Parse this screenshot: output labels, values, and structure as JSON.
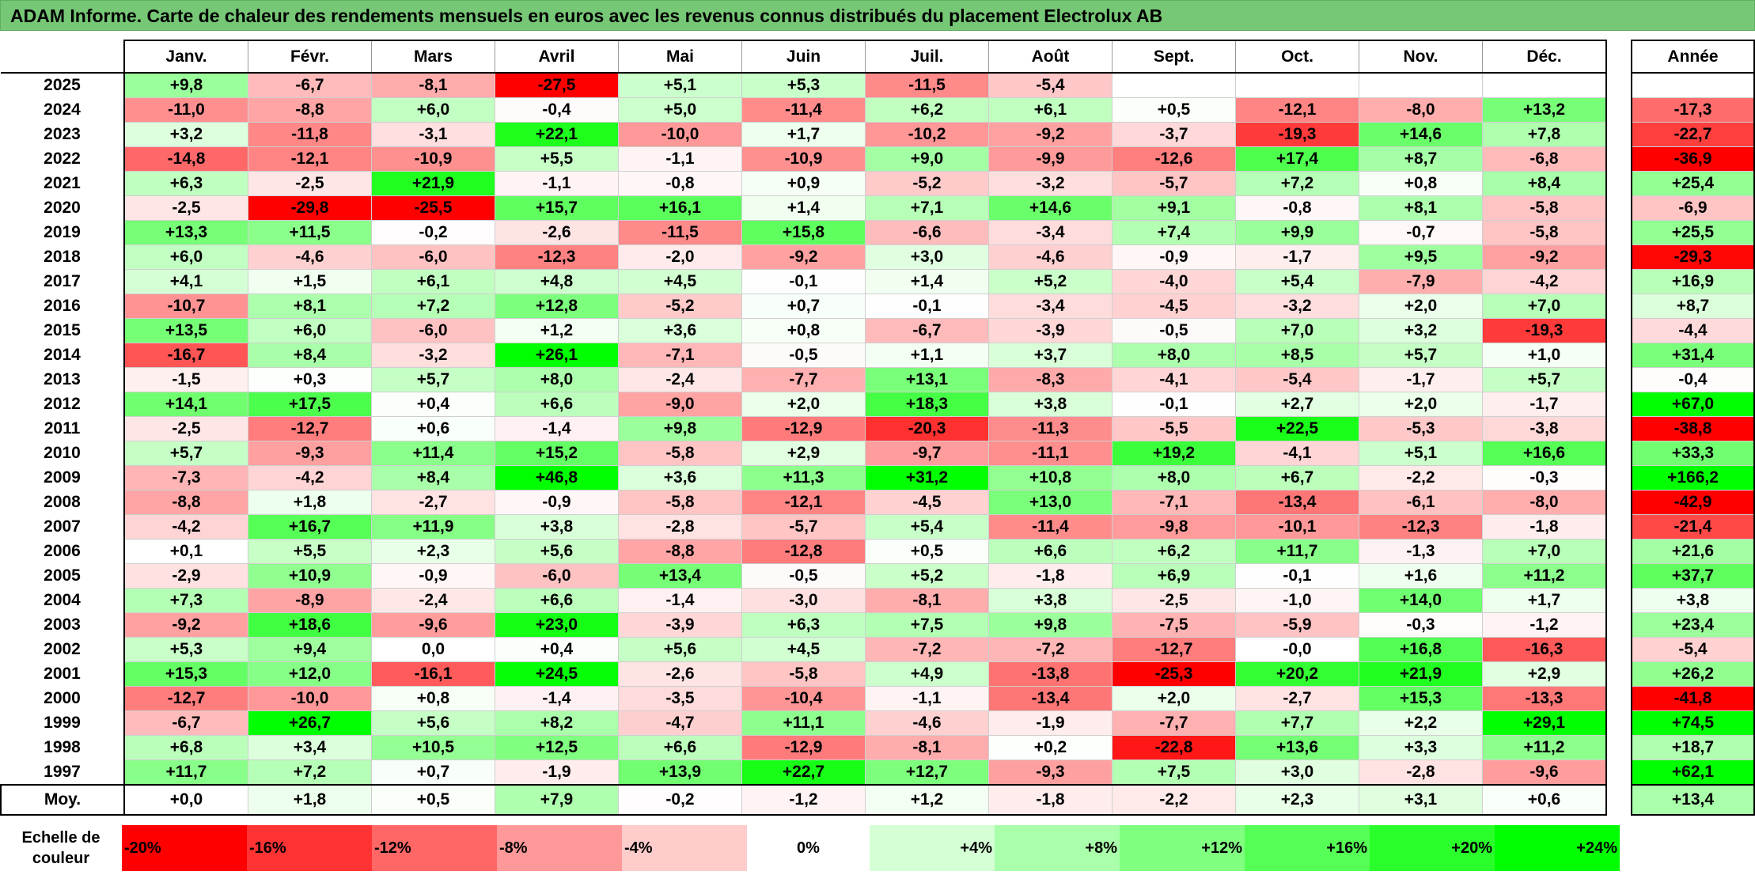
{
  "title": "ADAM Informe. Carte de chaleur des rendements mensuels en euros avec les revenus connus distribués du placement Electrolux AB",
  "colors": {
    "neg_max": "#ff0000",
    "neutral": "#ffffff",
    "pos_max": "#00ff00",
    "title_bg": "#76c776"
  },
  "chart_data": {
    "type": "heatmap",
    "title": "ADAM Informe. Carte de chaleur des rendements mensuels en euros avec les revenus connus distribués du placement Electrolux AB",
    "columns": [
      "Janv.",
      "Févr.",
      "Mars",
      "Avril",
      "Mai",
      "Juin",
      "Juil.",
      "Août",
      "Sept.",
      "Oct.",
      "Nov.",
      "Déc."
    ],
    "annual_label": "Année",
    "average_label": "Moy.",
    "rows": [
      {
        "year": "2025",
        "values": [
          "+9,8",
          "-6,7",
          "-8,1",
          "-27,5",
          "+5,1",
          "+5,3",
          "-11,5",
          "-5,4",
          "",
          "",
          "",
          ""
        ],
        "annual": ""
      },
      {
        "year": "2024",
        "values": [
          "-11,0",
          "-8,8",
          "+6,0",
          "-0,4",
          "+5,0",
          "-11,4",
          "+6,2",
          "+6,1",
          "+0,5",
          "-12,1",
          "-8,0",
          "+13,2"
        ],
        "annual": "-17,3"
      },
      {
        "year": "2023",
        "values": [
          "+3,2",
          "-11,8",
          "-3,1",
          "+22,1",
          "-10,0",
          "+1,7",
          "-10,2",
          "-9,2",
          "-3,7",
          "-19,3",
          "+14,6",
          "+7,8"
        ],
        "annual": "-22,7"
      },
      {
        "year": "2022",
        "values": [
          "-14,8",
          "-12,1",
          "-10,9",
          "+5,5",
          "-1,1",
          "-10,9",
          "+9,0",
          "-9,9",
          "-12,6",
          "+17,4",
          "+8,7",
          "-6,8"
        ],
        "annual": "-36,9"
      },
      {
        "year": "2021",
        "values": [
          "+6,3",
          "-2,5",
          "+21,9",
          "-1,1",
          "-0,8",
          "+0,9",
          "-5,2",
          "-3,2",
          "-5,7",
          "+7,2",
          "+0,8",
          "+8,4"
        ],
        "annual": "+25,4"
      },
      {
        "year": "2020",
        "values": [
          "-2,5",
          "-29,8",
          "-25,5",
          "+15,7",
          "+16,1",
          "+1,4",
          "+7,1",
          "+14,6",
          "+9,1",
          "-0,8",
          "+8,1",
          "-5,8"
        ],
        "annual": "-6,9"
      },
      {
        "year": "2019",
        "values": [
          "+13,3",
          "+11,5",
          "-0,2",
          "-2,6",
          "-11,5",
          "+15,8",
          "-6,6",
          "-3,4",
          "+7,4",
          "+9,9",
          "-0,7",
          "-5,8"
        ],
        "annual": "+25,5"
      },
      {
        "year": "2018",
        "values": [
          "+6,0",
          "-4,6",
          "-6,0",
          "-12,3",
          "-2,0",
          "-9,2",
          "+3,0",
          "-4,6",
          "-0,9",
          "-1,7",
          "+9,5",
          "-9,2"
        ],
        "annual": "-29,3"
      },
      {
        "year": "2017",
        "values": [
          "+4,1",
          "+1,5",
          "+6,1",
          "+4,8",
          "+4,5",
          "-0,1",
          "+1,4",
          "+5,2",
          "-4,0",
          "+5,4",
          "-7,9",
          "-4,2"
        ],
        "annual": "+16,9"
      },
      {
        "year": "2016",
        "values": [
          "-10,7",
          "+8,1",
          "+7,2",
          "+12,8",
          "-5,2",
          "+0,7",
          "-0,1",
          "-3,4",
          "-4,5",
          "-3,2",
          "+2,0",
          "+7,0"
        ],
        "annual": "+8,7"
      },
      {
        "year": "2015",
        "values": [
          "+13,5",
          "+6,0",
          "-6,0",
          "+1,2",
          "+3,6",
          "+0,8",
          "-6,7",
          "-3,9",
          "-0,5",
          "+7,0",
          "+3,2",
          "-19,3"
        ],
        "annual": "-4,4"
      },
      {
        "year": "2014",
        "values": [
          "-16,7",
          "+8,4",
          "-3,2",
          "+26,1",
          "-7,1",
          "-0,5",
          "+1,1",
          "+3,7",
          "+8,0",
          "+8,5",
          "+5,7",
          "+1,0"
        ],
        "annual": "+31,4"
      },
      {
        "year": "2013",
        "values": [
          "-1,5",
          "+0,3",
          "+5,7",
          "+8,0",
          "-2,4",
          "-7,7",
          "+13,1",
          "-8,3",
          "-4,1",
          "-5,4",
          "-1,7",
          "+5,7"
        ],
        "annual": "-0,4"
      },
      {
        "year": "2012",
        "values": [
          "+14,1",
          "+17,5",
          "+0,4",
          "+6,6",
          "-9,0",
          "+2,0",
          "+18,3",
          "+3,8",
          "-0,1",
          "+2,7",
          "+2,0",
          "-1,7"
        ],
        "annual": "+67,0"
      },
      {
        "year": "2011",
        "values": [
          "-2,5",
          "-12,7",
          "+0,6",
          "-1,4",
          "+9,8",
          "-12,9",
          "-20,3",
          "-11,3",
          "-5,5",
          "+22,5",
          "-5,3",
          "-3,8"
        ],
        "annual": "-38,8"
      },
      {
        "year": "2010",
        "values": [
          "+5,7",
          "-9,3",
          "+11,4",
          "+15,2",
          "-5,8",
          "+2,9",
          "-9,7",
          "-11,1",
          "+19,2",
          "-4,1",
          "+5,1",
          "+16,6"
        ],
        "annual": "+33,3"
      },
      {
        "year": "2009",
        "values": [
          "-7,3",
          "-4,2",
          "+8,4",
          "+46,8",
          "+3,6",
          "+11,3",
          "+31,2",
          "+10,8",
          "+8,0",
          "+6,7",
          "-2,2",
          "-0,3"
        ],
        "annual": "+166,2"
      },
      {
        "year": "2008",
        "values": [
          "-8,8",
          "+1,8",
          "-2,7",
          "-0,9",
          "-5,8",
          "-12,1",
          "-4,5",
          "+13,0",
          "-7,1",
          "-13,4",
          "-6,1",
          "-8,0"
        ],
        "annual": "-42,9"
      },
      {
        "year": "2007",
        "values": [
          "-4,2",
          "+16,7",
          "+11,9",
          "+3,8",
          "-2,8",
          "-5,7",
          "+5,4",
          "-11,4",
          "-9,8",
          "-10,1",
          "-12,3",
          "-1,8"
        ],
        "annual": "-21,4"
      },
      {
        "year": "2006",
        "values": [
          "+0,1",
          "+5,5",
          "+2,3",
          "+5,6",
          "-8,8",
          "-12,8",
          "+0,5",
          "+6,6",
          "+6,2",
          "+11,7",
          "-1,3",
          "+7,0"
        ],
        "annual": "+21,6"
      },
      {
        "year": "2005",
        "values": [
          "-2,9",
          "+10,9",
          "-0,9",
          "-6,0",
          "+13,4",
          "-0,5",
          "+5,2",
          "-1,8",
          "+6,9",
          "-0,1",
          "+1,6",
          "+11,2"
        ],
        "annual": "+37,7"
      },
      {
        "year": "2004",
        "values": [
          "+7,3",
          "-8,9",
          "-2,4",
          "+6,6",
          "-1,4",
          "-3,0",
          "-8,1",
          "+3,8",
          "-2,5",
          "-1,0",
          "+14,0",
          "+1,7"
        ],
        "annual": "+3,8"
      },
      {
        "year": "2003",
        "values": [
          "-9,2",
          "+18,6",
          "-9,6",
          "+23,0",
          "-3,9",
          "+6,3",
          "+7,5",
          "+9,8",
          "-7,5",
          "-5,9",
          "-0,3",
          "-1,2"
        ],
        "annual": "+23,4"
      },
      {
        "year": "2002",
        "values": [
          "+5,3",
          "+9,4",
          "0,0",
          "+0,4",
          "+5,6",
          "+4,5",
          "-7,2",
          "-7,2",
          "-12,7",
          "-0,0",
          "+16,8",
          "-16,3"
        ],
        "annual": "-5,4"
      },
      {
        "year": "2001",
        "values": [
          "+15,3",
          "+12,0",
          "-16,1",
          "+24,5",
          "-2,6",
          "-5,8",
          "+4,9",
          "-13,8",
          "-25,3",
          "+20,2",
          "+21,9",
          "+2,9"
        ],
        "annual": "+26,2"
      },
      {
        "year": "2000",
        "values": [
          "-12,7",
          "-10,0",
          "+0,8",
          "-1,4",
          "-3,5",
          "-10,4",
          "-1,1",
          "-13,4",
          "+2,0",
          "-2,7",
          "+15,3",
          "-13,3"
        ],
        "annual": "-41,8"
      },
      {
        "year": "1999",
        "values": [
          "-6,7",
          "+26,7",
          "+5,6",
          "+8,2",
          "-4,7",
          "+11,1",
          "-4,6",
          "-1,9",
          "-7,7",
          "+7,7",
          "+2,2",
          "+29,1"
        ],
        "annual": "+74,5"
      },
      {
        "year": "1998",
        "values": [
          "+6,8",
          "+3,4",
          "+10,5",
          "+12,5",
          "+6,6",
          "-12,9",
          "-8,1",
          "+0,2",
          "-22,8",
          "+13,6",
          "+3,3",
          "+11,2"
        ],
        "annual": "+18,7"
      },
      {
        "year": "1997",
        "values": [
          "+11,7",
          "+7,2",
          "+0,7",
          "-1,9",
          "+13,9",
          "+22,7",
          "+12,7",
          "-9,3",
          "+7,5",
          "+3,0",
          "-2,8",
          "-9,6"
        ],
        "annual": "+62,1"
      }
    ],
    "averages": [
      "+0,0",
      "+1,8",
      "+0,5",
      "+7,9",
      "-0,2",
      "-1,2",
      "+1,2",
      "-1,8",
      "-2,2",
      "+2,3",
      "+3,1",
      "+0,6"
    ],
    "average_annual": "+13,4",
    "color_scale_label": "Echelle de couleur",
    "color_scale": [
      "-20%",
      "-16%",
      "-12%",
      "-8%",
      "-4%",
      "0%",
      "+4%",
      "+8%",
      "+12%",
      "+16%",
      "+20%",
      "+24%"
    ]
  }
}
